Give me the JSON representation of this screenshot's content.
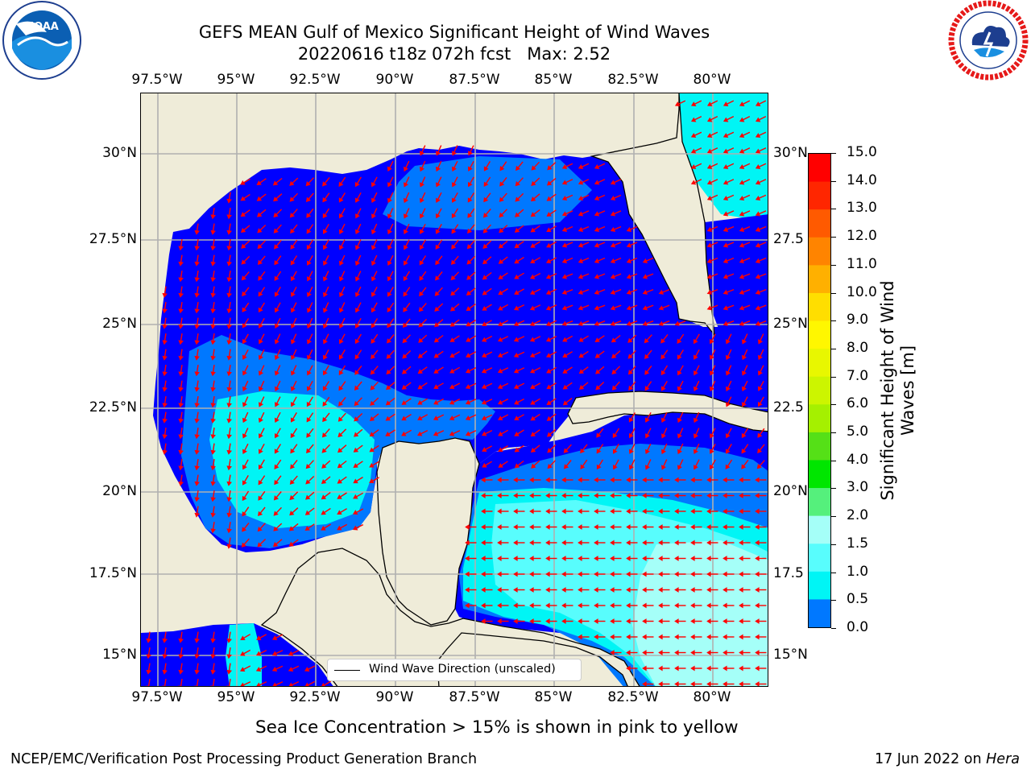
{
  "title": {
    "line1": "GEFS MEAN Gulf of Mexico Significant Height of Wind Waves",
    "line2": "20220616 t18z 072h fcst   Max: 2.52"
  },
  "logos": {
    "left": {
      "icon": "noaa-logo",
      "text": "NOAA",
      "ring_text": "NATIONAL OCEANIC AND ATMOSPHERIC ADMINISTRATION · U.S. DEPARTMENT OF COMMERCE"
    },
    "right": {
      "icon": "nws-logo",
      "ring_text": "NATIONAL WEATHER SERVICE"
    }
  },
  "map": {
    "lon_ticks_top": [
      "97.5°W",
      "95°W",
      "92.5°W",
      "90°W",
      "87.5°W",
      "85°W",
      "82.5°W",
      "80°W"
    ],
    "lon_ticks_bottom": [
      "97.5°W",
      "95°W",
      "92.5°W",
      "90°W",
      "87.5°W",
      "85°W",
      "82.5°W",
      "80°W"
    ],
    "lat_ticks_left": [
      "30°N",
      "27.5°N",
      "25°N",
      "22.5°N",
      "20°N",
      "17.5°N",
      "15°N"
    ],
    "lat_ticks_right": [
      "30°N",
      "27.5",
      "25°N",
      "22.5",
      "20°N",
      "17.5",
      "15°N"
    ],
    "grid": true,
    "land_color": "#efecd9",
    "arrow_color": "#ff0000",
    "legend": {
      "label": "Wind Wave Direction (unscaled)",
      "location": "lower center"
    }
  },
  "colorbar": {
    "title_line1": "Significant Height of Wind",
    "title_line2": "Waves [m]",
    "tick_labels": [
      "15.0",
      "14.0",
      "13.0",
      "12.0",
      "11.0",
      "10.0",
      "9.0",
      "8.0",
      "7.0",
      "6.0",
      "5.0",
      "4.0",
      "3.0",
      "2.0",
      "1.5",
      "1.0",
      "0.5",
      "0.0"
    ],
    "colors": [
      "#ff0000",
      "#ff2600",
      "#ff5a00",
      "#ff8400",
      "#ffb000",
      "#ffde00",
      "#fff700",
      "#e8f700",
      "#ccf500",
      "#a5f000",
      "#55e017",
      "#00e600",
      "#55f07c",
      "#a5fff8",
      "#58fdfd",
      "#00f5f5",
      "#0078ff",
      "#0000ff"
    ]
  },
  "caption": "Sea Ice Concentration > 15% is shown in pink to yellow",
  "footer": {
    "left": "NCEP/EMC/Verification Post Processing Product Generation Branch",
    "right_date": "17 Jun 2022 on ",
    "right_host": "Hera"
  }
}
